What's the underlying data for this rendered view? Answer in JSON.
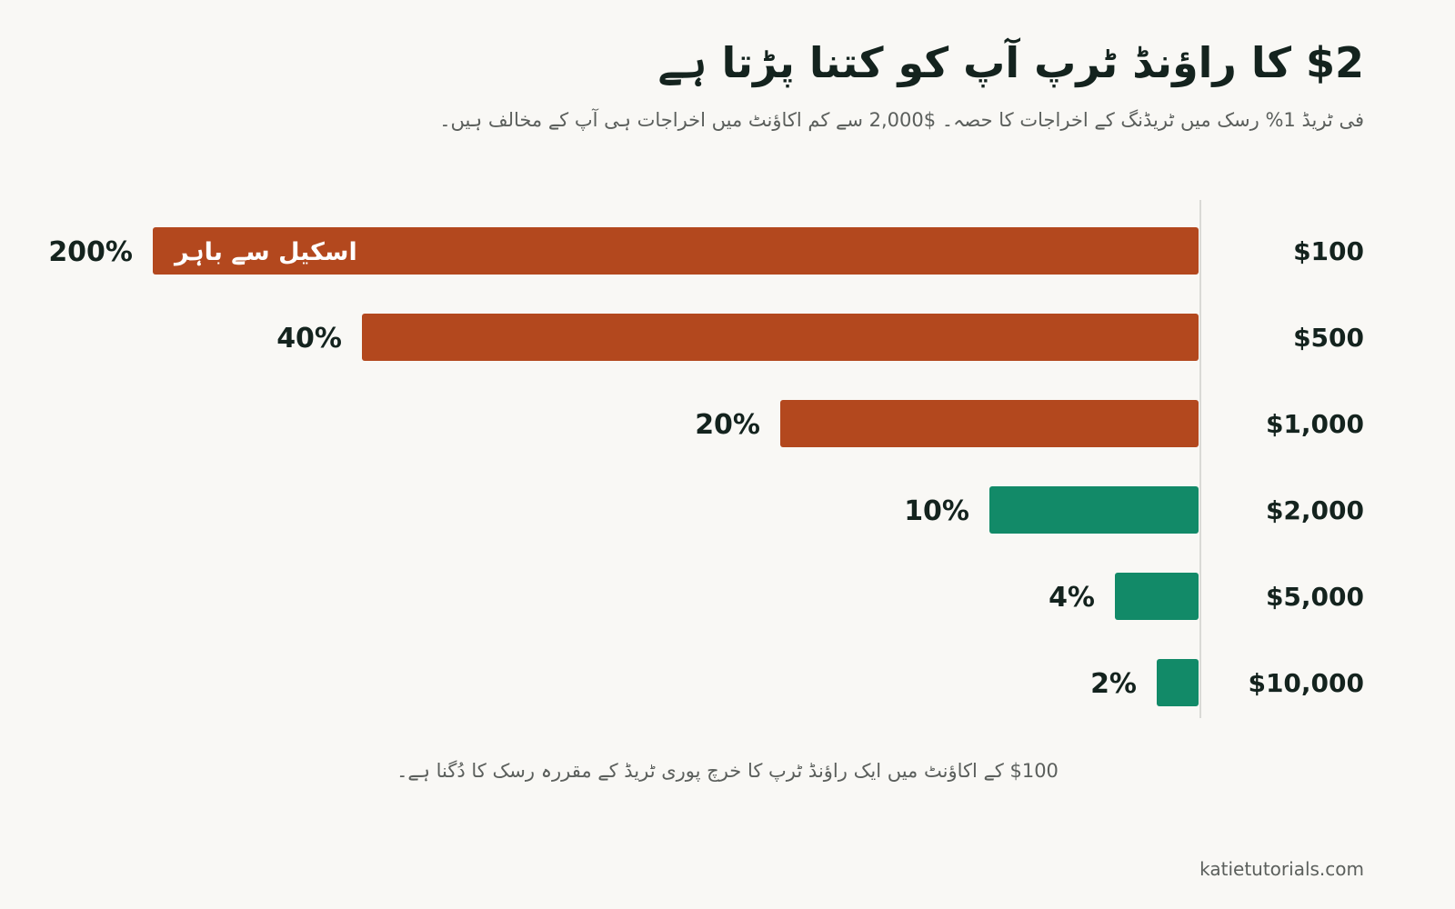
{
  "header": {
    "title": "$2 کا راؤنڈ ٹرپ آپ کو کتنا پڑتا ہے",
    "subtitle": "فی ٹریڈ 1% رسک میں ٹریڈنگ کے اخراجات کا حصہ۔ $2,000 سے کم اکاؤنٹ میں اخراجات ہی آپ کے مخالف ہیں۔"
  },
  "footer": {
    "note": "$100 کے اکاؤنٹ میں ایک راؤنڈ ٹرپ کا خرچ پوری ٹریڈ کے مقررہ رسک کا دُگنا ہے۔",
    "source": "katietutorials.com"
  },
  "colors": {
    "high": "#b3481e",
    "ok": "#128a68",
    "axis": "#cfcfcb",
    "label": "#14231e"
  },
  "chart_data": {
    "type": "bar",
    "orientation": "horizontal",
    "direction": "right-to-left",
    "categories": [
      "$100",
      "$500",
      "$1,000",
      "$2,000",
      "$5,000",
      "$10,000"
    ],
    "values": [
      200,
      40,
      20,
      10,
      4,
      2
    ],
    "value_labels": [
      "200%",
      "40%",
      "20%",
      "10%",
      "4%",
      "2%"
    ],
    "bar_colors": [
      "#b3481e",
      "#b3481e",
      "#b3481e",
      "#128a68",
      "#128a68",
      "#128a68"
    ],
    "xlim": [
      0,
      50
    ],
    "clipped_bar_label": "اسکیل سے باہر",
    "unit": "%"
  }
}
